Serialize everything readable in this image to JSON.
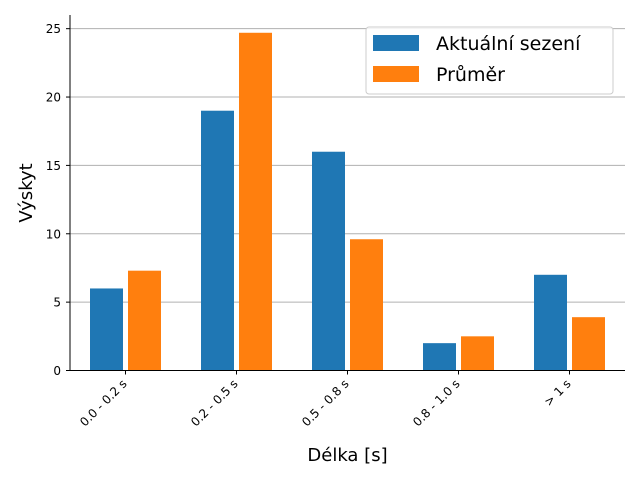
{
  "chart_data": {
    "type": "bar",
    "categories": [
      "0.0 - 0.2 s",
      "0.2 - 0.5 s",
      "0.5 - 0.8 s",
      "0.8 - 1.0 s",
      "> 1 s"
    ],
    "series": [
      {
        "name": "Aktuální sezení",
        "values": [
          6,
          19,
          16,
          2,
          7
        ]
      },
      {
        "name": "Průměr",
        "values": [
          7.3,
          24.7,
          9.6,
          2.5,
          3.9
        ]
      }
    ],
    "colors": [
      "#1f77b4",
      "#ff7f0e"
    ],
    "xlabel": "Délka [s]",
    "ylabel": "Výskyt",
    "ylim": [
      0,
      26
    ],
    "yticks": [
      0,
      5,
      10,
      15,
      20,
      25
    ],
    "grid": "horizontal",
    "legend_position": "top-right"
  }
}
